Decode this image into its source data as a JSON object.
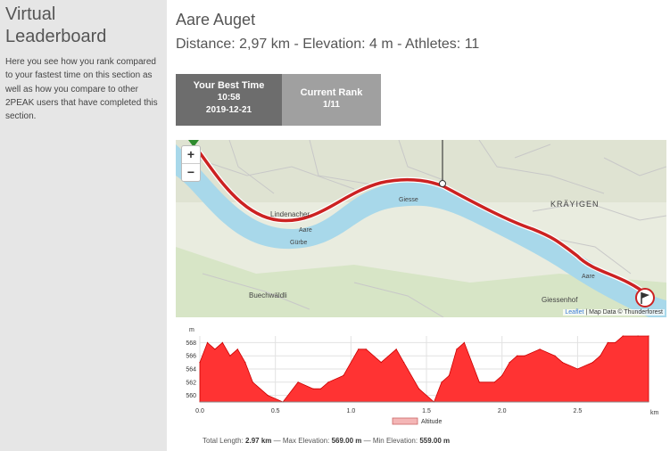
{
  "sidebar": {
    "title": "Virtual Leaderboard",
    "description": "Here you see how you rank compared to your fastest time on this section as well as how you compare to other 2PEAK users that have completed this section."
  },
  "segment": {
    "name": "Aare Auget",
    "stats": "Distance: 2,97 km - Elevation: 4 m - Athletes: 11"
  },
  "tiles": {
    "best": {
      "label": "Your Best Time",
      "time": "10:58",
      "date": "2019-12-21"
    },
    "rank": {
      "label": "Current Rank",
      "value": "1/11"
    }
  },
  "map": {
    "zoom_in": "+",
    "zoom_out": "−",
    "labels": {
      "lindenacher": "Lindenacher",
      "aare_left": "Aare",
      "guerbe": "Gürbe",
      "giesse": "Giesse",
      "kraeyigen": "KRÄYIGEN",
      "giessenhof": "Giessenhof",
      "buechwaeldli": "Buechwäldli",
      "aare_right": "Aare"
    },
    "attribution_leaflet": "Leaflet",
    "attribution_rest": "| Map Data © Thunderforest",
    "colors": {
      "route": "#cc2222",
      "river": "#a8d8ea",
      "land": "#e9ecdf"
    }
  },
  "chart_data": {
    "type": "area",
    "x": [
      0.0,
      0.05,
      0.1,
      0.15,
      0.2,
      0.25,
      0.3,
      0.35,
      0.45,
      0.55,
      0.65,
      0.75,
      0.8,
      0.85,
      0.95,
      1.05,
      1.1,
      1.2,
      1.3,
      1.35,
      1.45,
      1.55,
      1.6,
      1.65,
      1.7,
      1.75,
      1.85,
      1.95,
      2.0,
      2.05,
      2.1,
      2.15,
      2.25,
      2.35,
      2.4,
      2.5,
      2.6,
      2.65,
      2.7,
      2.75,
      2.8,
      2.9,
      2.97
    ],
    "values": [
      565,
      568,
      567,
      568,
      566,
      567,
      565,
      562,
      560,
      559,
      562,
      561,
      561,
      562,
      563,
      567,
      567,
      565,
      567,
      565,
      561,
      559,
      562,
      563,
      567,
      568,
      562,
      562,
      563,
      565,
      566,
      566,
      567,
      566,
      565,
      564,
      565,
      566,
      568,
      568,
      569,
      569,
      569
    ],
    "title": "",
    "xlabel": "km",
    "ylabel": "m",
    "xlim": [
      0,
      2.97
    ],
    "ylim": [
      559,
      569
    ],
    "x_ticks": [
      "0.0",
      "0.5",
      "1.0",
      "1.5",
      "2.0",
      "2.5"
    ],
    "y_ticks": [
      "560",
      "562",
      "564",
      "566",
      "568"
    ],
    "grid": true,
    "legend": "bottom",
    "series_name": "Altitude",
    "fill_color": "#ff3333",
    "legend_color": "#f4b6b6"
  },
  "footer": {
    "total_label": "Total Length:",
    "total_value": "2.97 km",
    "max_label": "— Max Elevation:",
    "max_value": "569.00 m",
    "min_label": "— Min Elevation:",
    "min_value": "559.00 m"
  }
}
